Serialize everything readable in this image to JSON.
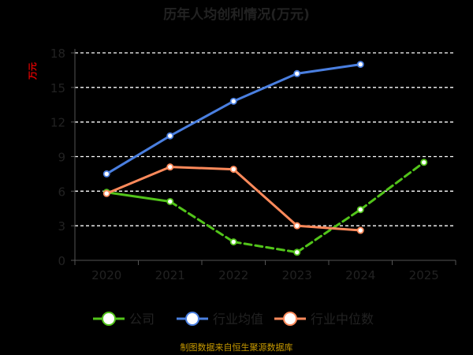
{
  "chart_data": {
    "type": "line",
    "title": "历年人均创利情况(万元)",
    "ylabel": "万元",
    "xlabel": "",
    "x": [
      "2020",
      "2021",
      "2022",
      "2023",
      "2024",
      "2025"
    ],
    "ylim": [
      0,
      18
    ],
    "yticks": [
      0,
      3,
      6,
      9,
      12,
      15,
      18
    ],
    "grid": true,
    "legend_position": "bottom",
    "series": [
      {
        "name": "公司",
        "color": "#52c41a",
        "dashed_from_index": 1,
        "values": [
          5.9,
          5.1,
          1.6,
          0.7,
          4.4,
          8.5
        ]
      },
      {
        "name": "行业均值",
        "color": "#4a7fe0",
        "values": [
          7.5,
          10.8,
          13.8,
          16.2,
          17.0,
          null
        ]
      },
      {
        "name": "行业中位数",
        "color": "#ff8a5b",
        "values": [
          5.8,
          8.1,
          7.9,
          3.0,
          2.6,
          null
        ]
      }
    ],
    "source_note": "制图数据来自恒生聚源数据库"
  }
}
